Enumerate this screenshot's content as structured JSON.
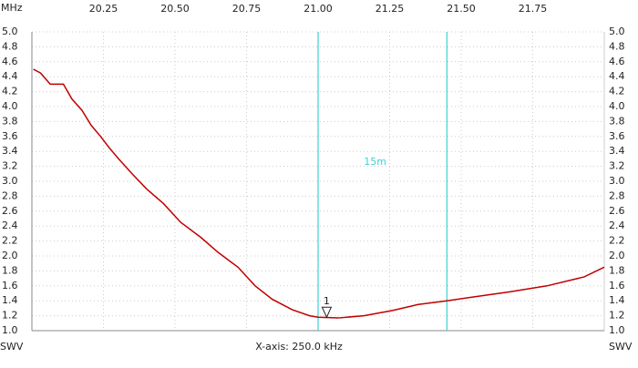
{
  "chart_data": {
    "type": "line",
    "x_unit": "MHz",
    "y_unit_left": "SWV",
    "y_unit_right": "SWV",
    "x_axis_note": "X-axis: 250.0 kHz",
    "x": [
      20.005,
      20.03,
      20.064,
      20.11,
      20.14,
      20.175,
      20.207,
      20.24,
      20.27,
      20.303,
      20.35,
      20.4,
      20.46,
      20.52,
      20.59,
      20.65,
      20.72,
      20.78,
      20.84,
      20.91,
      20.97,
      21.0,
      21.07,
      21.16,
      21.26,
      21.35,
      21.45,
      21.54,
      21.67,
      21.8,
      21.93,
      22.0
    ],
    "values": [
      4.5,
      4.45,
      4.3,
      4.3,
      4.1,
      3.95,
      3.75,
      3.6,
      3.45,
      3.3,
      3.1,
      2.9,
      2.7,
      2.45,
      2.25,
      2.05,
      1.85,
      1.6,
      1.42,
      1.28,
      1.2,
      1.18,
      1.17,
      1.2,
      1.27,
      1.35,
      1.4,
      1.45,
      1.52,
      1.6,
      1.72,
      1.85
    ],
    "color": "#c00000",
    "xlim": [
      20,
      22
    ],
    "xticks": [
      20.25,
      {
        "value": 20.5,
        "label": "20.50"
      },
      20.75,
      {
        "value": 21,
        "label": "21.00"
      },
      21.25,
      {
        "value": 21.5,
        "label": "21.50"
      },
      21.75
    ],
    "ylim": [
      1,
      5
    ],
    "yticks": [
      {
        "value": 1,
        "label": "1.0"
      },
      1.2,
      1.4,
      1.6,
      1.8,
      {
        "value": 2,
        "label": "2.0"
      },
      2.2,
      2.4,
      2.6,
      2.8,
      {
        "value": 3,
        "label": "3.0"
      },
      3.2,
      3.4,
      3.6,
      3.8,
      {
        "value": 4,
        "label": "4.0"
      },
      4.2,
      4.4,
      4.6,
      4.8,
      {
        "value": 5,
        "label": "5.0"
      }
    ],
    "grid": true,
    "band": {
      "label": "15m",
      "start": 21,
      "end": 21.45,
      "color": "#40d0d0"
    },
    "marker": {
      "label": "1",
      "x": 21.03,
      "y": 1.18
    }
  }
}
